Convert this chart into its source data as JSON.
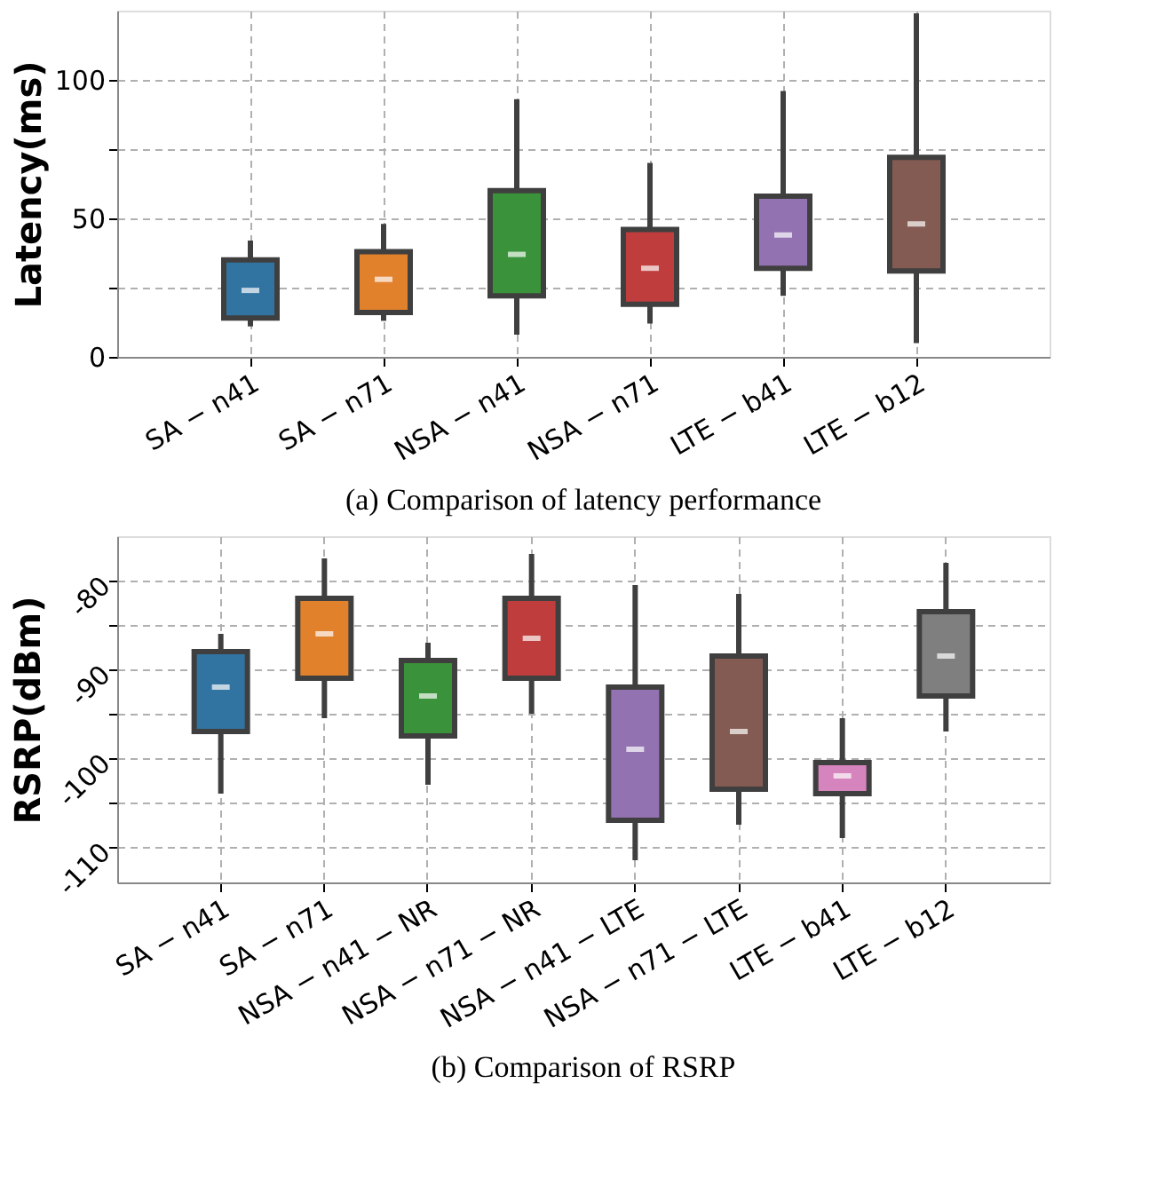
{
  "chart_data": [
    {
      "type": "box",
      "ylabel": "Latency(ms)",
      "categories": [
        "SA − n41",
        "SA − n71",
        "NSA − n41",
        "NSA − n71",
        "LTE − b41",
        "LTE − b12"
      ],
      "colors": [
        "#3274a1",
        "#e1812c",
        "#3a923a",
        "#c03d3e",
        "#9372b2",
        "#845b53"
      ],
      "boxes": [
        {
          "low": 11,
          "q1": 14,
          "median": 24,
          "q3": 35,
          "high": 42
        },
        {
          "low": 13,
          "q1": 16,
          "median": 28,
          "q3": 38,
          "high": 48
        },
        {
          "low": 8,
          "q1": 22,
          "median": 37,
          "q3": 60,
          "high": 93
        },
        {
          "low": 12,
          "q1": 19,
          "median": 32,
          "q3": 46,
          "high": 70
        },
        {
          "low": 22,
          "q1": 32,
          "median": 44,
          "q3": 58,
          "high": 96
        },
        {
          "low": 5,
          "q1": 31,
          "median": 48,
          "q3": 72,
          "high": 124
        }
      ],
      "ylim": [
        0,
        125
      ],
      "yticks": [
        0,
        {
          "value": 25,
          "label": null
        },
        50,
        {
          "value": 75,
          "label": null
        },
        100
      ],
      "grid": true,
      "annotations": [
        "(a) Comparison of latency performance"
      ]
    },
    {
      "type": "box",
      "ylabel": "RSRP(dBm)",
      "categories": [
        "SA − n41",
        "SA − n71",
        "NSA − n41 − NR",
        "NSA − n71 − NR",
        "NSA − n41 − LTE",
        "NSA − n71 − LTE",
        "LTE − b41",
        "LTE − b12"
      ],
      "colors": [
        "#3274a1",
        "#e1812c",
        "#3a923a",
        "#c03d3e",
        "#9372b2",
        "#845b53",
        "#d684bd",
        "#7f7f7f"
      ],
      "boxes": [
        {
          "low": -104,
          "q1": -97,
          "median": -92,
          "q3": -88,
          "high": -86
        },
        {
          "low": -95.5,
          "q1": -91,
          "median": -86,
          "q3": -82,
          "high": -77.5
        },
        {
          "low": -103,
          "q1": -97.5,
          "median": -93,
          "q3": -89,
          "high": -87
        },
        {
          "low": -95,
          "q1": -91,
          "median": -86.5,
          "q3": -82,
          "high": -77
        },
        {
          "low": -111.5,
          "q1": -107,
          "median": -99,
          "q3": -92,
          "high": -80.5
        },
        {
          "low": -107.5,
          "q1": -103.5,
          "median": -97,
          "q3": -88.5,
          "high": -81.5
        },
        {
          "low": -109,
          "q1": -104,
          "median": -102,
          "q3": -100.5,
          "high": -95.5
        },
        {
          "low": -97,
          "q1": -93,
          "median": -88.5,
          "q3": -83.5,
          "high": -78
        }
      ],
      "ylim": [
        -114,
        -75
      ],
      "yticks": [
        -110,
        {
          "value": -105,
          "label": null
        },
        -100,
        {
          "value": -95,
          "label": null
        },
        -90,
        {
          "value": -85,
          "label": null
        },
        -80
      ],
      "grid": true,
      "annotations": [
        "(b) Comparison of RSRP"
      ]
    }
  ]
}
